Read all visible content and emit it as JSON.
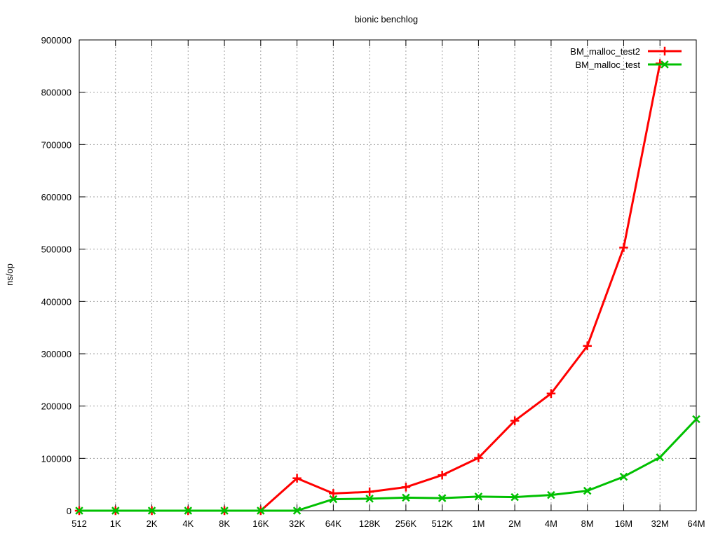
{
  "chart_data": {
    "type": "line",
    "title": "bionic benchlog",
    "xlabel": "",
    "ylabel": "ns/op",
    "categories": [
      "512",
      "1K",
      "2K",
      "4K",
      "8K",
      "16K",
      "32K",
      "64K",
      "128K",
      "256K",
      "512K",
      "1M",
      "2M",
      "4M",
      "8M",
      "16M",
      "32M",
      "64M"
    ],
    "ylim": [
      0,
      900000
    ],
    "yticks": [
      0,
      100000,
      200000,
      300000,
      400000,
      500000,
      600000,
      700000,
      800000,
      900000
    ],
    "grid": true,
    "legend_position": "top-right",
    "series": [
      {
        "name": "BM_malloc_test2",
        "color": "#ff0000",
        "marker": "plus",
        "values": [
          0,
          0,
          0,
          0,
          0,
          0,
          62000,
          33000,
          36000,
          45000,
          68000,
          101000,
          172000,
          224000,
          315000,
          503000,
          855000,
          null
        ]
      },
      {
        "name": "BM_malloc_test",
        "color": "#00c000",
        "marker": "cross",
        "values": [
          0,
          0,
          0,
          0,
          0,
          0,
          0,
          22000,
          23000,
          25000,
          24000,
          27000,
          26000,
          30000,
          38000,
          65000,
          102000,
          175000
        ]
      }
    ]
  }
}
